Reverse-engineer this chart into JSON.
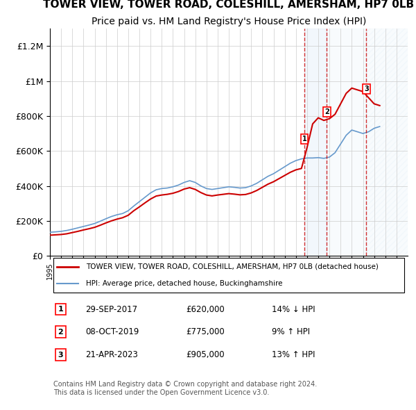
{
  "title": "TOWER VIEW, TOWER ROAD, COLESHILL, AMERSHAM, HP7 0LB",
  "subtitle": "Price paid vs. HM Land Registry's House Price Index (HPI)",
  "title_fontsize": 11,
  "subtitle_fontsize": 10,
  "ylim": [
    0,
    1300000
  ],
  "yticks": [
    0,
    200000,
    400000,
    600000,
    800000,
    1000000,
    1200000
  ],
  "ytick_labels": [
    "£0",
    "£200K",
    "£400K",
    "£600K",
    "£800K",
    "£1M",
    "£1.2M"
  ],
  "x_start_year": 1995,
  "x_end_year": 2027,
  "line_color_property": "#cc0000",
  "line_color_hpi": "#6699cc",
  "transaction_dates": [
    2017.75,
    2019.77,
    2023.31
  ],
  "transaction_prices": [
    620000,
    775000,
    905000
  ],
  "transaction_labels": [
    "1",
    "2",
    "3"
  ],
  "transaction_date_strs": [
    "29-SEP-2017",
    "08-OCT-2019",
    "21-APR-2023"
  ],
  "transaction_price_strs": [
    "£620,000",
    "£775,000",
    "£905,000"
  ],
  "transaction_hpi_strs": [
    "14% ↓ HPI",
    "9% ↑ HPI",
    "13% ↑ HPI"
  ],
  "legend_label_property": "TOWER VIEW, TOWER ROAD, COLESHILL, AMERSHAM, HP7 0LB (detached house)",
  "legend_label_hpi": "HPI: Average price, detached house, Buckinghamshire",
  "footer_text": "Contains HM Land Registry data © Crown copyright and database right 2024.\nThis data is licensed under the Open Government Licence v3.0.",
  "background_color": "#ffffff",
  "grid_color": "#cccccc",
  "shaded_region_color": "#ddeeff",
  "future_hatch_color": "#aabbcc"
}
